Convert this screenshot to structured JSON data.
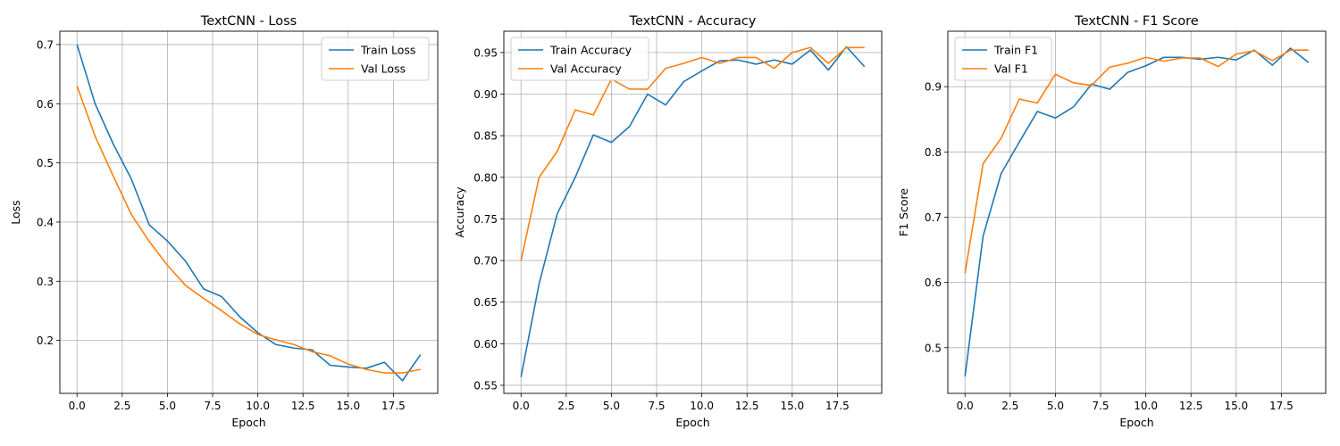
{
  "colors": {
    "train": "#1f77b4",
    "val": "#ff7f0e",
    "grid": "#b0b0b0"
  },
  "chart_data": [
    {
      "type": "line",
      "title": "TextCNN - Loss",
      "xlabel": "Epoch",
      "ylabel": "Loss",
      "grid": true,
      "legend_position": "top-right",
      "xlim": [
        -0.95,
        19.95
      ],
      "ylim": [
        0.1105,
        0.7225
      ],
      "xticks": [
        0.0,
        2.5,
        5.0,
        7.5,
        10.0,
        12.5,
        15.0,
        17.5
      ],
      "xtick_labels": [
        "0.0",
        "2.5",
        "5.0",
        "7.5",
        "10.0",
        "12.5",
        "15.0",
        "17.5"
      ],
      "yticks": [
        0.2,
        0.3,
        0.4,
        0.5,
        0.6,
        0.7
      ],
      "ytick_labels": [
        "0.2",
        "0.3",
        "0.4",
        "0.5",
        "0.6",
        "0.7"
      ],
      "x": [
        0,
        1,
        2,
        3,
        4,
        5,
        6,
        7,
        8,
        9,
        10,
        11,
        12,
        13,
        14,
        15,
        16,
        17,
        18,
        19
      ],
      "series": [
        {
          "name": "Train Loss",
          "values": [
            0.7,
            0.6,
            0.532,
            0.473,
            0.395,
            0.368,
            0.334,
            0.287,
            0.274,
            0.24,
            0.213,
            0.193,
            0.187,
            0.184,
            0.158,
            0.155,
            0.153,
            0.163,
            0.132,
            0.176
          ]
        },
        {
          "name": "Val Loss",
          "values": [
            0.63,
            0.545,
            0.478,
            0.413,
            0.367,
            0.327,
            0.293,
            0.271,
            0.25,
            0.228,
            0.21,
            0.201,
            0.193,
            0.181,
            0.174,
            0.16,
            0.151,
            0.145,
            0.145,
            0.151
          ]
        }
      ]
    },
    {
      "type": "line",
      "title": "TextCNN - Accuracy",
      "xlabel": "Epoch",
      "ylabel": "Accuracy",
      "grid": true,
      "legend_position": "top-left",
      "xlim": [
        -0.95,
        19.95
      ],
      "ylim": [
        0.5403,
        0.9756
      ],
      "xticks": [
        0.0,
        2.5,
        5.0,
        7.5,
        10.0,
        12.5,
        15.0,
        17.5
      ],
      "xtick_labels": [
        "0.0",
        "2.5",
        "5.0",
        "7.5",
        "10.0",
        "12.5",
        "15.0",
        "17.5"
      ],
      "yticks": [
        0.55,
        0.6,
        0.65,
        0.7,
        0.75,
        0.8,
        0.85,
        0.9,
        0.95
      ],
      "ytick_labels": [
        "0.55",
        "0.60",
        "0.65",
        "0.70",
        "0.75",
        "0.80",
        "0.85",
        "0.90",
        "0.95"
      ],
      "x": [
        0,
        1,
        2,
        3,
        4,
        5,
        6,
        7,
        8,
        9,
        10,
        11,
        12,
        13,
        14,
        15,
        16,
        17,
        18,
        19
      ],
      "series": [
        {
          "name": "Train Accuracy",
          "values": [
            0.56,
            0.672,
            0.756,
            0.8,
            0.851,
            0.842,
            0.861,
            0.9,
            0.887,
            0.915,
            0.928,
            0.94,
            0.941,
            0.936,
            0.941,
            0.936,
            0.953,
            0.929,
            0.957,
            0.933
          ]
        },
        {
          "name": "Val Accuracy",
          "values": [
            0.7,
            0.8,
            0.831,
            0.881,
            0.875,
            0.918,
            0.906,
            0.906,
            0.931,
            0.937,
            0.944,
            0.937,
            0.944,
            0.944,
            0.931,
            0.95,
            0.956,
            0.937,
            0.956,
            0.956
          ]
        }
      ]
    },
    {
      "type": "line",
      "title": "TextCNN - F1 Score",
      "xlabel": "Epoch",
      "ylabel": "F1 Score",
      "grid": true,
      "legend_position": "top-left",
      "xlim": [
        -0.95,
        19.95
      ],
      "ylim": [
        0.43,
        0.985
      ],
      "xticks": [
        0.0,
        2.5,
        5.0,
        7.5,
        10.0,
        12.5,
        15.0,
        17.5
      ],
      "xtick_labels": [
        "0.0",
        "2.5",
        "5.0",
        "7.5",
        "10.0",
        "12.5",
        "15.0",
        "17.5"
      ],
      "yticks": [
        0.5,
        0.6,
        0.7,
        0.8,
        0.9
      ],
      "ytick_labels": [
        "0.5",
        "0.6",
        "0.7",
        "0.8",
        "0.9"
      ],
      "x": [
        0,
        1,
        2,
        3,
        4,
        5,
        6,
        7,
        8,
        9,
        10,
        11,
        12,
        13,
        14,
        15,
        16,
        17,
        18,
        19
      ],
      "series": [
        {
          "name": "Train F1",
          "values": [
            0.456,
            0.671,
            0.767,
            0.815,
            0.862,
            0.852,
            0.869,
            0.904,
            0.896,
            0.922,
            0.932,
            0.945,
            0.945,
            0.942,
            0.945,
            0.941,
            0.956,
            0.933,
            0.959,
            0.937
          ]
        },
        {
          "name": "Val F1",
          "values": [
            0.614,
            0.782,
            0.821,
            0.881,
            0.875,
            0.919,
            0.906,
            0.902,
            0.93,
            0.936,
            0.945,
            0.939,
            0.944,
            0.944,
            0.931,
            0.95,
            0.955,
            0.94,
            0.956,
            0.956
          ]
        }
      ]
    }
  ]
}
